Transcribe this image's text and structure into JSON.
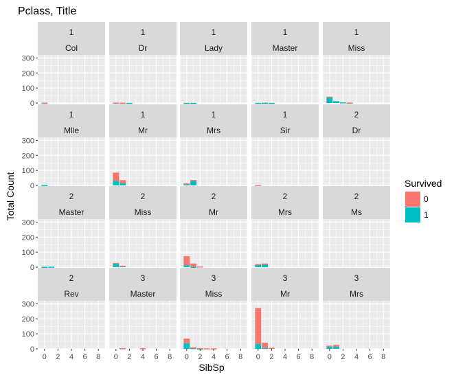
{
  "chart_data": {
    "type": "bar",
    "title": "Pclass, Title",
    "xlabel": "SibSp",
    "ylabel": "Total Count",
    "xlim": [
      -1,
      9
    ],
    "ylim": [
      0,
      320
    ],
    "x_ticks": [
      0,
      2,
      4,
      6,
      8
    ],
    "y_ticks": [
      0,
      100,
      200,
      300
    ],
    "grid": true,
    "stacked": true,
    "legend": {
      "title": "Survived",
      "position": "right",
      "entries": [
        {
          "label": "0",
          "color": "#F8766D"
        },
        {
          "label": "1",
          "color": "#00BFC4"
        }
      ]
    },
    "panels": [
      {
        "strip": [
          "1",
          "Col"
        ],
        "bars": [
          {
            "x": 0,
            "s0": 1,
            "s1": 1
          }
        ]
      },
      {
        "strip": [
          "1",
          "Dr"
        ],
        "bars": [
          {
            "x": 0,
            "s0": 1,
            "s1": 2
          },
          {
            "x": 1,
            "s0": 1,
            "s1": 1
          },
          {
            "x": 2,
            "s0": 0,
            "s1": 1
          }
        ]
      },
      {
        "strip": [
          "1",
          "Lady"
        ],
        "bars": [
          {
            "x": 0,
            "s0": 0,
            "s1": 1
          },
          {
            "x": 1,
            "s0": 0,
            "s1": 1
          }
        ]
      },
      {
        "strip": [
          "1",
          "Master"
        ],
        "bars": [
          {
            "x": 0,
            "s0": 0,
            "s1": 1
          },
          {
            "x": 1,
            "s0": 0,
            "s1": 2
          },
          {
            "x": 2,
            "s0": 0,
            "s1": 1
          }
        ]
      },
      {
        "strip": [
          "1",
          "Miss"
        ],
        "bars": [
          {
            "x": 0,
            "s0": 2,
            "s1": 40
          },
          {
            "x": 1,
            "s0": 0,
            "s1": 12
          },
          {
            "x": 2,
            "s0": 0,
            "s1": 4
          },
          {
            "x": 3,
            "s0": 1,
            "s1": 2
          }
        ]
      },
      {
        "strip": [
          "1",
          "Mlle"
        ],
        "bars": [
          {
            "x": 0,
            "s0": 0,
            "s1": 2
          }
        ]
      },
      {
        "strip": [
          "1",
          "Mr"
        ],
        "bars": [
          {
            "x": 0,
            "s0": 55,
            "s1": 30
          },
          {
            "x": 1,
            "s0": 20,
            "s1": 15
          }
        ]
      },
      {
        "strip": [
          "1",
          "Mrs"
        ],
        "bars": [
          {
            "x": 0,
            "s0": 1,
            "s1": 12
          },
          {
            "x": 1,
            "s0": 1,
            "s1": 35
          }
        ]
      },
      {
        "strip": [
          "1",
          "Sir"
        ],
        "bars": [
          {
            "x": 0,
            "s0": 1,
            "s1": 0
          }
        ]
      },
      {
        "strip": [
          "2",
          "Dr"
        ],
        "bars": []
      },
      {
        "strip": [
          "2",
          "Master"
        ],
        "bars": [
          {
            "x": 0,
            "s0": 0,
            "s1": 2
          },
          {
            "x": 1,
            "s0": 0,
            "s1": 3
          }
        ]
      },
      {
        "strip": [
          "2",
          "Miss"
        ],
        "bars": [
          {
            "x": 0,
            "s0": 3,
            "s1": 25
          },
          {
            "x": 1,
            "s0": 2,
            "s1": 7
          }
        ]
      },
      {
        "strip": [
          "2",
          "Mr"
        ],
        "bars": [
          {
            "x": 0,
            "s0": 60,
            "s1": 13
          },
          {
            "x": 1,
            "s0": 22,
            "s1": 2
          },
          {
            "x": 2,
            "s0": 4,
            "s1": 0
          }
        ]
      },
      {
        "strip": [
          "2",
          "Mrs"
        ],
        "bars": [
          {
            "x": 0,
            "s0": 2,
            "s1": 18
          },
          {
            "x": 1,
            "s0": 4,
            "s1": 20
          }
        ]
      },
      {
        "strip": [
          "2",
          "Ms"
        ],
        "bars": []
      },
      {
        "strip": [
          "2",
          "Rev"
        ],
        "bars": []
      },
      {
        "strip": [
          "3",
          "Master"
        ],
        "bars": [
          {
            "x": 1,
            "s0": 1,
            "s1": 4
          },
          {
            "x": 4,
            "s0": 5,
            "s1": 0
          }
        ]
      },
      {
        "strip": [
          "3",
          "Miss"
        ],
        "bars": [
          {
            "x": 0,
            "s0": 30,
            "s1": 38
          },
          {
            "x": 1,
            "s0": 5,
            "s1": 5
          },
          {
            "x": 2,
            "s0": 3,
            "s1": 2
          },
          {
            "x": 3,
            "s0": 3,
            "s1": 0
          },
          {
            "x": 4,
            "s0": 3,
            "s1": 0
          }
        ]
      },
      {
        "strip": [
          "3",
          "Mr"
        ],
        "bars": [
          {
            "x": 0,
            "s0": 238,
            "s1": 33
          },
          {
            "x": 1,
            "s0": 35,
            "s1": 6
          },
          {
            "x": 2,
            "s0": 7,
            "s1": 0
          }
        ]
      },
      {
        "strip": [
          "3",
          "Mrs"
        ],
        "bars": [
          {
            "x": 0,
            "s0": 6,
            "s1": 15
          },
          {
            "x": 1,
            "s0": 12,
            "s1": 14
          }
        ]
      }
    ]
  }
}
